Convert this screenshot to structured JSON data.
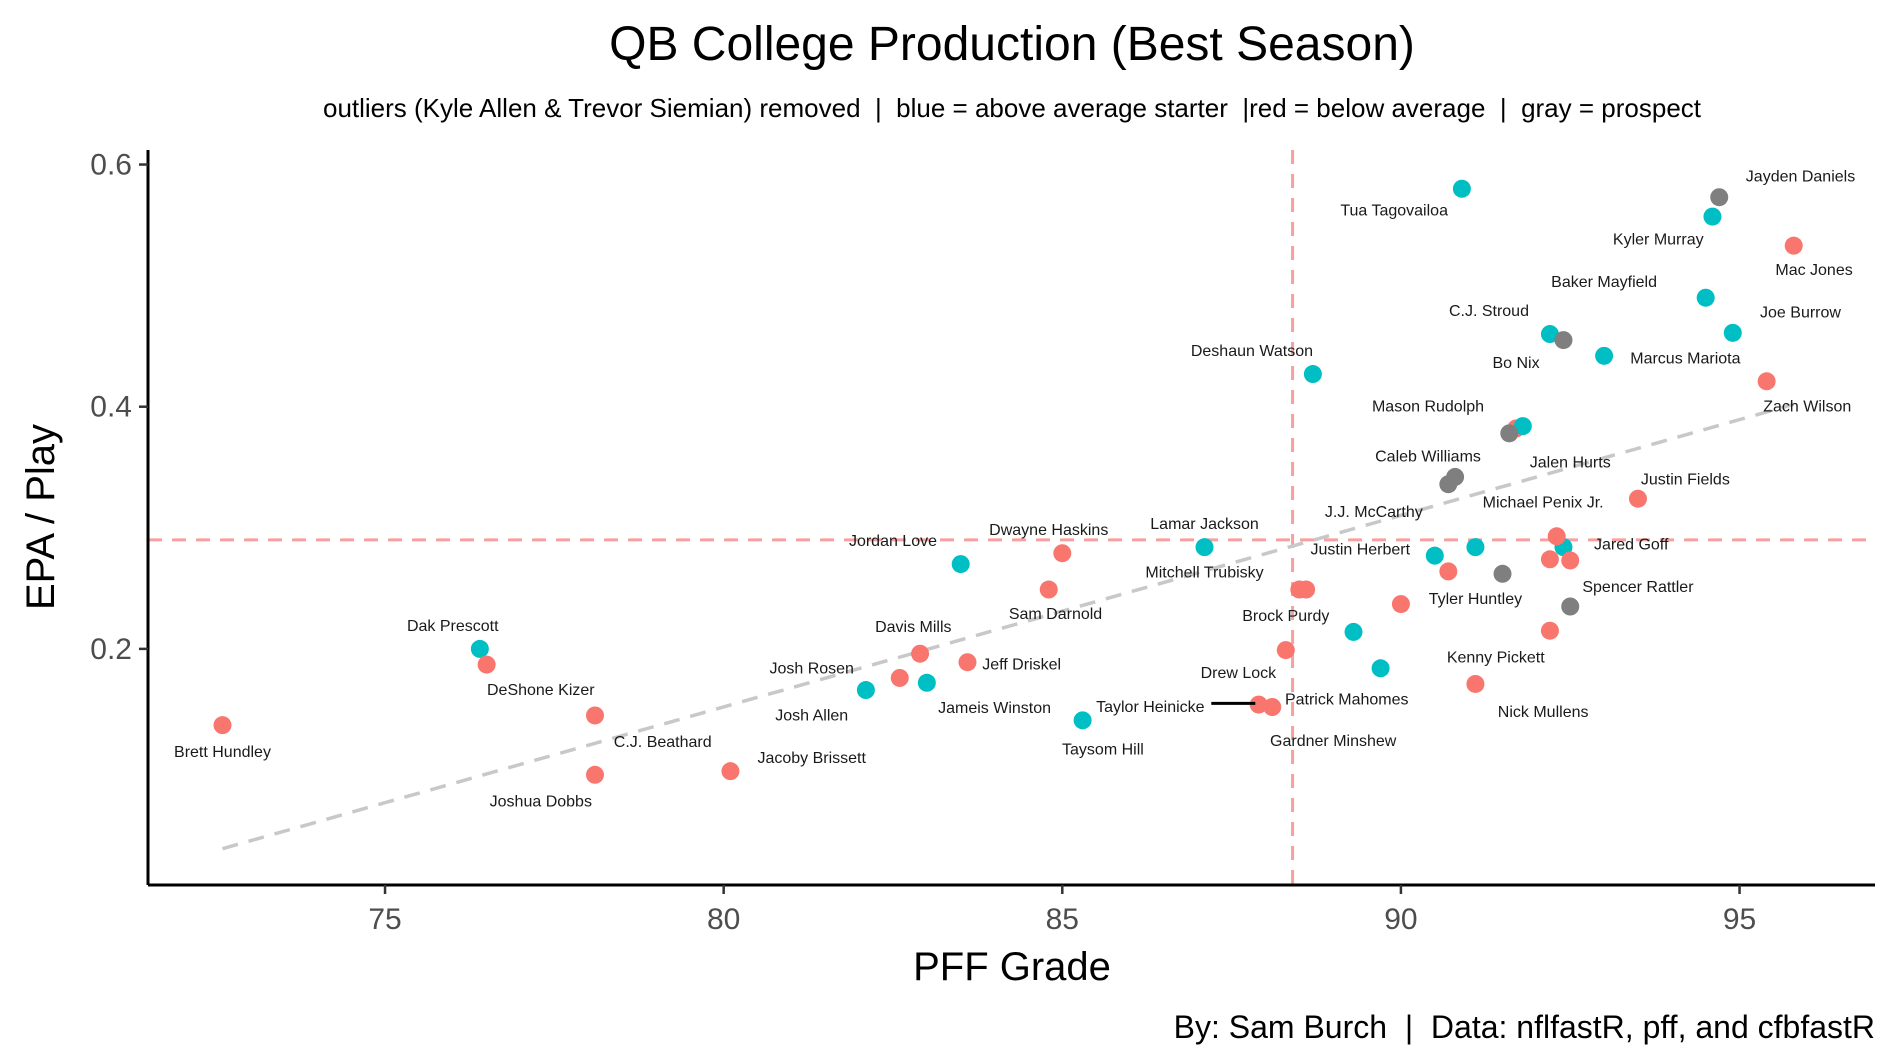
{
  "chart_data": {
    "type": "scatter",
    "title": "QB College Production (Best Season)",
    "subtitle": "outliers (Kyle Allen & Trevor Siemian) removed  |  blue = above average starter  |red = below average  |  gray = prospect",
    "caption": "By: Sam Burch  |  Data: nflfastR, pff, and cfbfastR",
    "xlabel": "PFF Grade",
    "ylabel": "EPA / Play",
    "xlim": [
      71.5,
      97
    ],
    "ylim": [
      0.005,
      0.612
    ],
    "x_ticks": [
      75,
      80,
      85,
      90,
      95
    ],
    "y_ticks": [
      0.2,
      0.4,
      0.6
    ],
    "x_tick_labels": [
      "75",
      "80",
      "85",
      "90",
      "95"
    ],
    "y_tick_labels": [
      "0.2",
      "0.4",
      "0.6"
    ],
    "grid": false,
    "colors": {
      "above_average_starter": "#00BFC4",
      "below_average": "#F8766D",
      "prospect": "#7F7F7F",
      "reference_line": "#F8A0A0",
      "trend_line": "#C8C8C8"
    },
    "reference_lines": {
      "x": 88.4,
      "y": 0.29
    },
    "trend_line": {
      "x": [
        72.6,
        95.8
      ],
      "y": 0.035,
      "y_end": 0.402
    },
    "points": [
      {
        "label": "Brett Hundley",
        "x": 72.6,
        "y": 0.137,
        "group": "below_average",
        "label_x": 72.6,
        "label_y": 0.115
      },
      {
        "label": "Dak Prescott",
        "x": 76.4,
        "y": 0.2,
        "group": "above_average_starter",
        "label_x": 76.0,
        "label_y": 0.219
      },
      {
        "label": "DeShone Kizer",
        "x": 76.5,
        "y": 0.187,
        "group": "below_average",
        "label_x": 77.3,
        "label_y": 0.166
      },
      {
        "label": "C.J. Beathard",
        "x": 78.1,
        "y": 0.145,
        "group": "below_average",
        "label_x": 79.1,
        "label_y": 0.123
      },
      {
        "label": "Joshua Dobbs",
        "x": 78.1,
        "y": 0.096,
        "group": "below_average",
        "label_x": 77.3,
        "label_y": 0.074
      },
      {
        "label": "Jacoby Brissett",
        "x": 80.1,
        "y": 0.099,
        "group": "below_average",
        "label_x": 81.3,
        "label_y": 0.11
      },
      {
        "label": "Josh Rosen",
        "x": 82.6,
        "y": 0.176,
        "group": "below_average",
        "label_x": 81.3,
        "label_y": 0.184
      },
      {
        "label": "Josh Allen",
        "x": 82.1,
        "y": 0.166,
        "group": "above_average_starter",
        "label_x": 81.3,
        "label_y": 0.145
      },
      {
        "label": "Davis Mills",
        "x": 82.9,
        "y": 0.196,
        "group": "below_average",
        "label_x": 82.8,
        "label_y": 0.218
      },
      {
        "label": "Jameis Winston",
        "x": 83.0,
        "y": 0.172,
        "group": "above_average_starter",
        "label_x": 84.0,
        "label_y": 0.151
      },
      {
        "label": "Jeff Driskel",
        "x": 83.6,
        "y": 0.189,
        "group": "below_average",
        "label_x": 84.4,
        "label_y": 0.187
      },
      {
        "label": "Jordan Love",
        "x": 83.5,
        "y": 0.27,
        "group": "above_average_starter",
        "label_x": 82.5,
        "label_y": 0.289
      },
      {
        "label": "Dwayne Haskins",
        "x": 85.0,
        "y": 0.279,
        "group": "below_average",
        "label_x": 84.8,
        "label_y": 0.298
      },
      {
        "label": "Sam Darnold",
        "x": 84.8,
        "y": 0.249,
        "group": "below_average",
        "label_x": 84.9,
        "label_y": 0.229
      },
      {
        "label": "Taysom Hill",
        "x": 85.3,
        "y": 0.141,
        "group": "above_average_starter",
        "label_x": 85.6,
        "label_y": 0.117
      },
      {
        "label": "Lamar Jackson",
        "x": 87.1,
        "y": 0.284,
        "group": "above_average_starter",
        "label_x": 87.1,
        "label_y": 0.303
      },
      {
        "label": "Mitchell Trubisky",
        "x": 88.5,
        "y": 0.249,
        "group": "below_average",
        "label_x": 87.1,
        "label_y": 0.263
      },
      {
        "label": "Drew Lock",
        "x": 88.3,
        "y": 0.199,
        "group": "below_average",
        "label_x": 87.6,
        "label_y": 0.18
      },
      {
        "label": "Taylor Heinicke",
        "x": 87.9,
        "y": 0.154,
        "group": "below_average",
        "label_x": 86.3,
        "label_y": 0.152
      },
      {
        "label": "Gardner Minshew",
        "x": 88.1,
        "y": 0.152,
        "group": "below_average",
        "label_x": 89.0,
        "label_y": 0.124
      },
      {
        "label": "Deshaun Watson",
        "x": 88.7,
        "y": 0.427,
        "group": "above_average_starter",
        "label_x": 87.8,
        "label_y": 0.446
      },
      {
        "label": "Brock Purdy",
        "x": 89.3,
        "y": 0.214,
        "group": "above_average_starter",
        "label_x": 88.3,
        "label_y": 0.227
      },
      {
        "label": "Patrick Mahomes",
        "x": 89.7,
        "y": 0.184,
        "group": "above_average_starter",
        "label_x": 89.2,
        "label_y": 0.158
      },
      {
        "label": "Justin Herbert",
        "x": 90.5,
        "y": 0.277,
        "group": "above_average_starter",
        "label_x": 89.4,
        "label_y": 0.282
      },
      {
        "label": "Tyler Huntley",
        "x": 90.0,
        "y": 0.237,
        "group": "below_average",
        "label_x": 91.1,
        "label_y": 0.241
      },
      {
        "label": "Tua Tagovailoa",
        "x": 90.9,
        "y": 0.58,
        "group": "above_average_starter",
        "label_x": 89.9,
        "label_y": 0.562
      },
      {
        "label": "C.J. Stroud",
        "x": 92.2,
        "y": 0.46,
        "group": "above_average_starter",
        "label_x": 91.3,
        "label_y": 0.479
      },
      {
        "label": "Bo Nix",
        "x": 92.4,
        "y": 0.455,
        "group": "prospect",
        "label_x": 91.7,
        "label_y": 0.436
      },
      {
        "label": "Marcus Mariota",
        "x": 93.0,
        "y": 0.442,
        "group": "above_average_starter",
        "label_x": 94.2,
        "label_y": 0.44
      },
      {
        "label": "Mason Rudolph",
        "x": 91.7,
        "y": 0.382,
        "group": "below_average",
        "label_x": 90.4,
        "label_y": 0.4
      },
      {
        "label": "Jalen Hurts",
        "x": 91.8,
        "y": 0.384,
        "group": "above_average_starter",
        "label_x": 92.5,
        "label_y": 0.354
      },
      {
        "label": "Caleb Williams",
        "x": 91.6,
        "y": 0.378,
        "group": "prospect",
        "label_x": 90.4,
        "label_y": 0.359
      },
      {
        "label": "J.J. McCarthy",
        "x": 90.8,
        "y": 0.342,
        "group": "prospect",
        "label_x": 89.6,
        "label_y": 0.313
      },
      {
        "label": "Michael Penix Jr.",
        "x": 90.7,
        "y": 0.336,
        "group": "prospect",
        "label_x": 92.1,
        "label_y": 0.321
      },
      {
        "label": "Justin Fields",
        "x": 93.5,
        "y": 0.324,
        "group": "below_average",
        "label_x": 94.2,
        "label_y": 0.34
      },
      {
        "label": "Jared Goff",
        "x": 92.3,
        "y": 0.293,
        "group": "below_average",
        "label_x": 93.4,
        "label_y": 0.286
      },
      {
        "label": "Spencer Rattler",
        "x": 92.5,
        "y": 0.235,
        "group": "prospect",
        "label_x": 93.5,
        "label_y": 0.251
      },
      {
        "label": "Kenny Pickett",
        "x": 92.2,
        "y": 0.215,
        "group": "below_average",
        "label_x": 91.4,
        "label_y": 0.193
      },
      {
        "label": "Nick Mullens",
        "x": 91.1,
        "y": 0.171,
        "group": "below_average",
        "label_x": 92.1,
        "label_y": 0.148
      },
      {
        "label": "Jayden Daniels",
        "x": 94.7,
        "y": 0.573,
        "group": "prospect",
        "label_x": 95.9,
        "label_y": 0.59
      },
      {
        "label": "Kyler Murray",
        "x": 94.6,
        "y": 0.557,
        "group": "above_average_starter",
        "label_x": 93.8,
        "label_y": 0.538
      },
      {
        "label": "Mac Jones",
        "x": 95.8,
        "y": 0.533,
        "group": "below_average",
        "label_x": 96.1,
        "label_y": 0.513
      },
      {
        "label": "Baker Mayfield",
        "x": 94.5,
        "y": 0.49,
        "group": "above_average_starter",
        "label_x": 93.0,
        "label_y": 0.503
      },
      {
        "label": "Joe Burrow",
        "x": 94.9,
        "y": 0.461,
        "group": "above_average_starter",
        "label_x": 95.9,
        "label_y": 0.478
      },
      {
        "label": "Zach Wilson",
        "x": 95.4,
        "y": 0.421,
        "group": "below_average",
        "label_x": 96.0,
        "label_y": 0.4
      }
    ],
    "extra_points": [
      {
        "x": 88.6,
        "y": 0.249,
        "group": "below_average"
      },
      {
        "x": 90.7,
        "y": 0.264,
        "group": "below_average"
      },
      {
        "x": 91.1,
        "y": 0.284,
        "group": "above_average_starter"
      },
      {
        "x": 91.5,
        "y": 0.262,
        "group": "prospect"
      },
      {
        "x": 92.2,
        "y": 0.274,
        "group": "below_average"
      },
      {
        "x": 92.4,
        "y": 0.284,
        "group": "above_average_starter"
      },
      {
        "x": 92.5,
        "y": 0.273,
        "group": "below_average"
      }
    ]
  }
}
